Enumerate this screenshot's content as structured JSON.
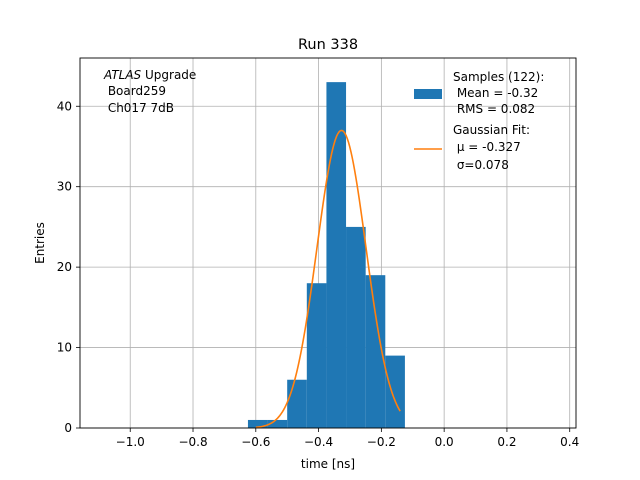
{
  "chart_data": {
    "type": "histogram",
    "title": "Run 338",
    "xlabel": "time [ns]",
    "ylabel": "Entries",
    "xlim": [
      -1.16,
      0.42
    ],
    "ylim": [
      0,
      46
    ],
    "xticks": [
      -1.0,
      -0.8,
      -0.6,
      -0.4,
      -0.2,
      0.0,
      0.2,
      0.4
    ],
    "xtick_labels": [
      "−1.0",
      "−0.8",
      "−0.6",
      "−0.4",
      "−0.2",
      "0.0",
      "0.2",
      "0.4"
    ],
    "yticks": [
      0,
      10,
      20,
      30,
      40
    ],
    "yticks_labels": [
      "0",
      "10",
      "20",
      "30",
      "40"
    ],
    "grid": true,
    "bins": [
      {
        "x0": -0.625,
        "x1": -0.5625,
        "count": 1
      },
      {
        "x0": -0.5625,
        "x1": -0.5,
        "count": 1
      },
      {
        "x0": -0.5,
        "x1": -0.4375,
        "count": 6
      },
      {
        "x0": -0.4375,
        "x1": -0.375,
        "count": 18
      },
      {
        "x0": -0.375,
        "x1": -0.3125,
        "count": 43
      },
      {
        "x0": -0.3125,
        "x1": -0.25,
        "count": 25
      },
      {
        "x0": -0.25,
        "x1": -0.1875,
        "count": 19
      },
      {
        "x0": -0.1875,
        "x1": -0.125,
        "count": 9
      }
    ],
    "fit": {
      "mu": -0.327,
      "sigma": 0.078,
      "peak": 37,
      "x_range": [
        -0.6,
        -0.14
      ]
    },
    "colors": {
      "histogram": "#1f77b4",
      "fit": "#ff7f0e",
      "grid": "#b0b0b0"
    },
    "annotation": {
      "line1_italic": "ATLAS",
      "line1_rest": " Upgrade",
      "line2": " Board259",
      "line3": " Ch017 7dB"
    },
    "legend": {
      "placement": "upper right",
      "hist_lines": [
        "Samples (122):",
        " Mean = -0.32",
        " RMS = 0.082"
      ],
      "fit_lines": [
        "Gaussian Fit:",
        " μ = -0.327",
        " σ=0.078"
      ]
    }
  }
}
